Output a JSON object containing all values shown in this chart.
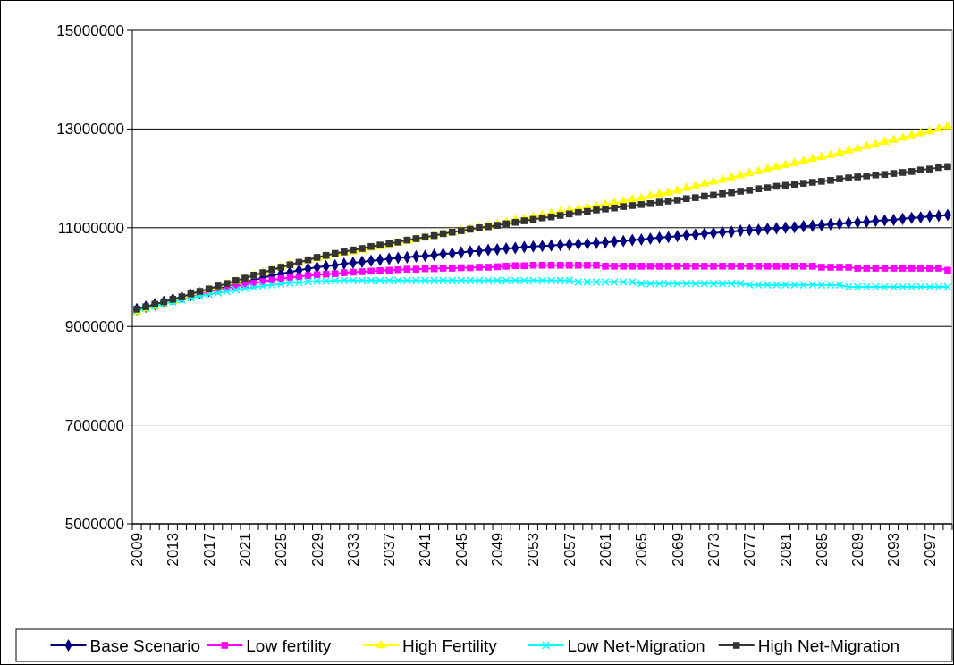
{
  "chart_data": {
    "type": "line",
    "categories": [
      "2009",
      null,
      null,
      null,
      "2013",
      null,
      null,
      null,
      "2017",
      null,
      null,
      null,
      "2021",
      null,
      null,
      null,
      "2025",
      null,
      null,
      null,
      "2029",
      null,
      null,
      null,
      "2033",
      null,
      null,
      null,
      "2037",
      null,
      null,
      null,
      "2041",
      null,
      null,
      null,
      "2045",
      null,
      null,
      null,
      "2049",
      null,
      null,
      null,
      "2053",
      null,
      null,
      null,
      "2057",
      null,
      null,
      null,
      "2061",
      null,
      null,
      null,
      "2065",
      null,
      null,
      null,
      "2069",
      null,
      null,
      null,
      "2073",
      null,
      null,
      null,
      "2077",
      null,
      null,
      null,
      "2081",
      null,
      null,
      null,
      "2085",
      null,
      null,
      null,
      "2089",
      null,
      null,
      null,
      "2093",
      null,
      null,
      null,
      "2097",
      null,
      null
    ],
    "series": [
      {
        "name": "Base Scenario",
        "color": "#000080",
        "marker": "diamond",
        "values": [
          9350000,
          9400000,
          9450000,
          9500000,
          9550000,
          9590000,
          9640000,
          9680000,
          9720000,
          9770000,
          9810000,
          9860000,
          9900000,
          9940000,
          9990000,
          10030000,
          10070000,
          10100000,
          10140000,
          10170000,
          10200000,
          10220000,
          10240000,
          10270000,
          10290000,
          10310000,
          10330000,
          10350000,
          10370000,
          10390000,
          10400000,
          10420000,
          10430000,
          10450000,
          10470000,
          10480000,
          10500000,
          10520000,
          10530000,
          10550000,
          10560000,
          10580000,
          10590000,
          10610000,
          10620000,
          10630000,
          10640000,
          10650000,
          10660000,
          10670000,
          10680000,
          10690000,
          10700000,
          10720000,
          10730000,
          10750000,
          10760000,
          10780000,
          10800000,
          10810000,
          10830000,
          10850000,
          10860000,
          10880000,
          10890000,
          10910000,
          10920000,
          10940000,
          10950000,
          10960000,
          10980000,
          10990000,
          11000000,
          11010000,
          11030000,
          11040000,
          11050000,
          11070000,
          11080000,
          11100000,
          11110000,
          11120000,
          11140000,
          11150000,
          11160000,
          11180000,
          11200000,
          11210000,
          11230000,
          11240000,
          11260000
        ]
      },
      {
        "name": "Low fertility",
        "color": "#ff00ff",
        "marker": "square",
        "values": [
          null,
          null,
          null,
          null,
          null,
          null,
          9620000,
          9660000,
          9700000,
          9740000,
          9780000,
          9810000,
          9850000,
          9880000,
          9910000,
          9940000,
          9970000,
          9990000,
          10010000,
          10030000,
          10050000,
          10060000,
          10070000,
          10090000,
          10100000,
          10110000,
          10120000,
          10130000,
          10140000,
          10150000,
          10160000,
          10160000,
          10170000,
          10170000,
          10180000,
          10180000,
          10190000,
          10190000,
          10200000,
          10200000,
          10210000,
          10220000,
          10230000,
          10230000,
          10240000,
          10240000,
          10240000,
          10240000,
          10240000,
          10240000,
          10240000,
          10240000,
          10220000,
          10220000,
          10220000,
          10220000,
          10220000,
          10220000,
          10220000,
          10220000,
          10220000,
          10220000,
          10220000,
          10220000,
          10220000,
          10220000,
          10220000,
          10220000,
          10220000,
          10220000,
          10220000,
          10220000,
          10220000,
          10220000,
          10220000,
          10220000,
          10200000,
          10200000,
          10200000,
          10200000,
          10180000,
          10180000,
          10180000,
          10180000,
          10180000,
          10180000,
          10180000,
          10180000,
          10180000,
          10180000,
          10140000
        ]
      },
      {
        "name": "High Fertility",
        "color": "#ffff00",
        "marker": "triangle",
        "values": [
          9300000,
          9360000,
          9410000,
          9470000,
          9520000,
          9580000,
          9630000,
          9690000,
          9740000,
          9800000,
          9860000,
          9910000,
          9970000,
          10030000,
          10090000,
          10140000,
          10200000,
          10250000,
          10290000,
          10340000,
          10380000,
          10420000,
          10450000,
          10490000,
          10520000,
          10550000,
          10590000,
          10620000,
          10650000,
          10690000,
          10730000,
          10760000,
          10800000,
          10840000,
          10880000,
          10910000,
          10950000,
          10980000,
          11010000,
          11040000,
          11070000,
          11110000,
          11150000,
          11180000,
          11220000,
          11250000,
          11290000,
          11320000,
          11350000,
          11380000,
          11410000,
          11440000,
          11470000,
          11500000,
          11540000,
          11570000,
          11600000,
          11640000,
          11680000,
          11710000,
          11750000,
          11800000,
          11840000,
          11890000,
          11930000,
          11970000,
          12020000,
          12060000,
          12100000,
          12140000,
          12190000,
          12230000,
          12270000,
          12310000,
          12350000,
          12390000,
          12430000,
          12470000,
          12520000,
          12560000,
          12600000,
          12650000,
          12690000,
          12740000,
          12780000,
          12820000,
          12870000,
          12910000,
          12950000,
          13000000,
          13050000
        ]
      },
      {
        "name": "Low Net-Migration",
        "color": "#00ffff",
        "marker": "cross",
        "values": [
          9320000,
          9370000,
          9410000,
          9460000,
          9500000,
          9540000,
          9580000,
          9610000,
          9650000,
          9680000,
          9710000,
          9740000,
          9770000,
          9790000,
          9820000,
          9840000,
          9860000,
          9880000,
          9890000,
          9910000,
          9920000,
          9920000,
          9930000,
          9930000,
          9930000,
          9930000,
          9930000,
          9930000,
          9930000,
          9930000,
          9930000,
          9930000,
          9930000,
          9930000,
          9930000,
          9930000,
          9930000,
          9930000,
          9930000,
          9930000,
          9930000,
          9930000,
          9930000,
          9930000,
          9930000,
          9930000,
          9930000,
          9930000,
          9930000,
          9900000,
          9900000,
          9900000,
          9900000,
          9900000,
          9900000,
          9900000,
          9870000,
          9870000,
          9870000,
          9870000,
          9870000,
          9870000,
          9870000,
          9870000,
          9870000,
          9870000,
          9870000,
          9870000,
          9840000,
          9840000,
          9840000,
          9840000,
          9840000,
          9840000,
          9840000,
          9840000,
          9840000,
          9840000,
          9840000,
          9800000,
          9800000,
          9800000,
          9800000,
          9800000,
          9800000,
          9800000,
          9800000,
          9800000,
          9800000,
          9800000,
          9800000
        ]
      },
      {
        "name": "High Net-Migration",
        "color": "#333333",
        "marker": "square",
        "values": [
          9350000,
          9400000,
          9450000,
          9500000,
          9550000,
          9600000,
          9660000,
          9710000,
          9760000,
          9820000,
          9870000,
          9930000,
          9980000,
          10040000,
          10090000,
          10150000,
          10200000,
          10250000,
          10300000,
          10350000,
          10400000,
          10440000,
          10480000,
          10510000,
          10550000,
          10580000,
          10620000,
          10650000,
          10680000,
          10710000,
          10750000,
          10780000,
          10810000,
          10840000,
          10880000,
          10910000,
          10940000,
          10970000,
          11000000,
          11020000,
          11050000,
          11080000,
          11110000,
          11140000,
          11170000,
          11200000,
          11220000,
          11250000,
          11280000,
          11310000,
          11330000,
          11360000,
          11380000,
          11400000,
          11430000,
          11450000,
          11470000,
          11490000,
          11520000,
          11540000,
          11560000,
          11590000,
          11610000,
          11640000,
          11660000,
          11690000,
          11710000,
          11740000,
          11760000,
          11790000,
          11810000,
          11840000,
          11860000,
          11880000,
          11900000,
          11920000,
          11940000,
          11960000,
          11990000,
          12010000,
          12030000,
          12050000,
          12070000,
          12080000,
          12100000,
          12120000,
          12140000,
          12170000,
          12190000,
          12220000,
          12240000
        ]
      }
    ],
    "ylim": [
      5000000,
      15000000
    ],
    "yticks": [
      5000000,
      7000000,
      9000000,
      11000000,
      13000000,
      15000000
    ],
    "grid": "y",
    "legend": "bottom",
    "line_style": "solid"
  }
}
